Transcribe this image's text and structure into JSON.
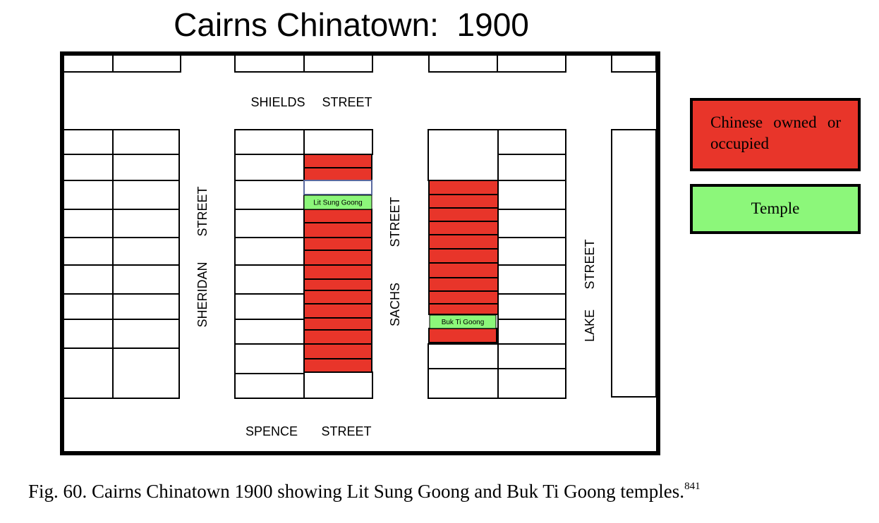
{
  "title": "Cairns Chinatown:  1900",
  "map": {
    "streets": [
      {
        "name": "SHIELDS",
        "suffix": "STREET"
      },
      {
        "name": "SPENCE",
        "suffix": "STREET"
      },
      {
        "name": "SHERIDAN",
        "suffix": "STREET"
      },
      {
        "name": "SACHS",
        "suffix": "STREET"
      },
      {
        "name": "LAKE",
        "suffix": "STREET"
      }
    ],
    "temples": [
      "Lit Sung Goong",
      "Buk Ti Goong"
    ]
  },
  "legend": [
    {
      "label": "Chinese owned or occupied"
    },
    {
      "label": "Temple"
    }
  ],
  "caption": {
    "text": "Fig. 60. Cairns Chinatown 1900 showing Lit Sung Goong and Buk Ti Goong temples.",
    "note": "841"
  }
}
